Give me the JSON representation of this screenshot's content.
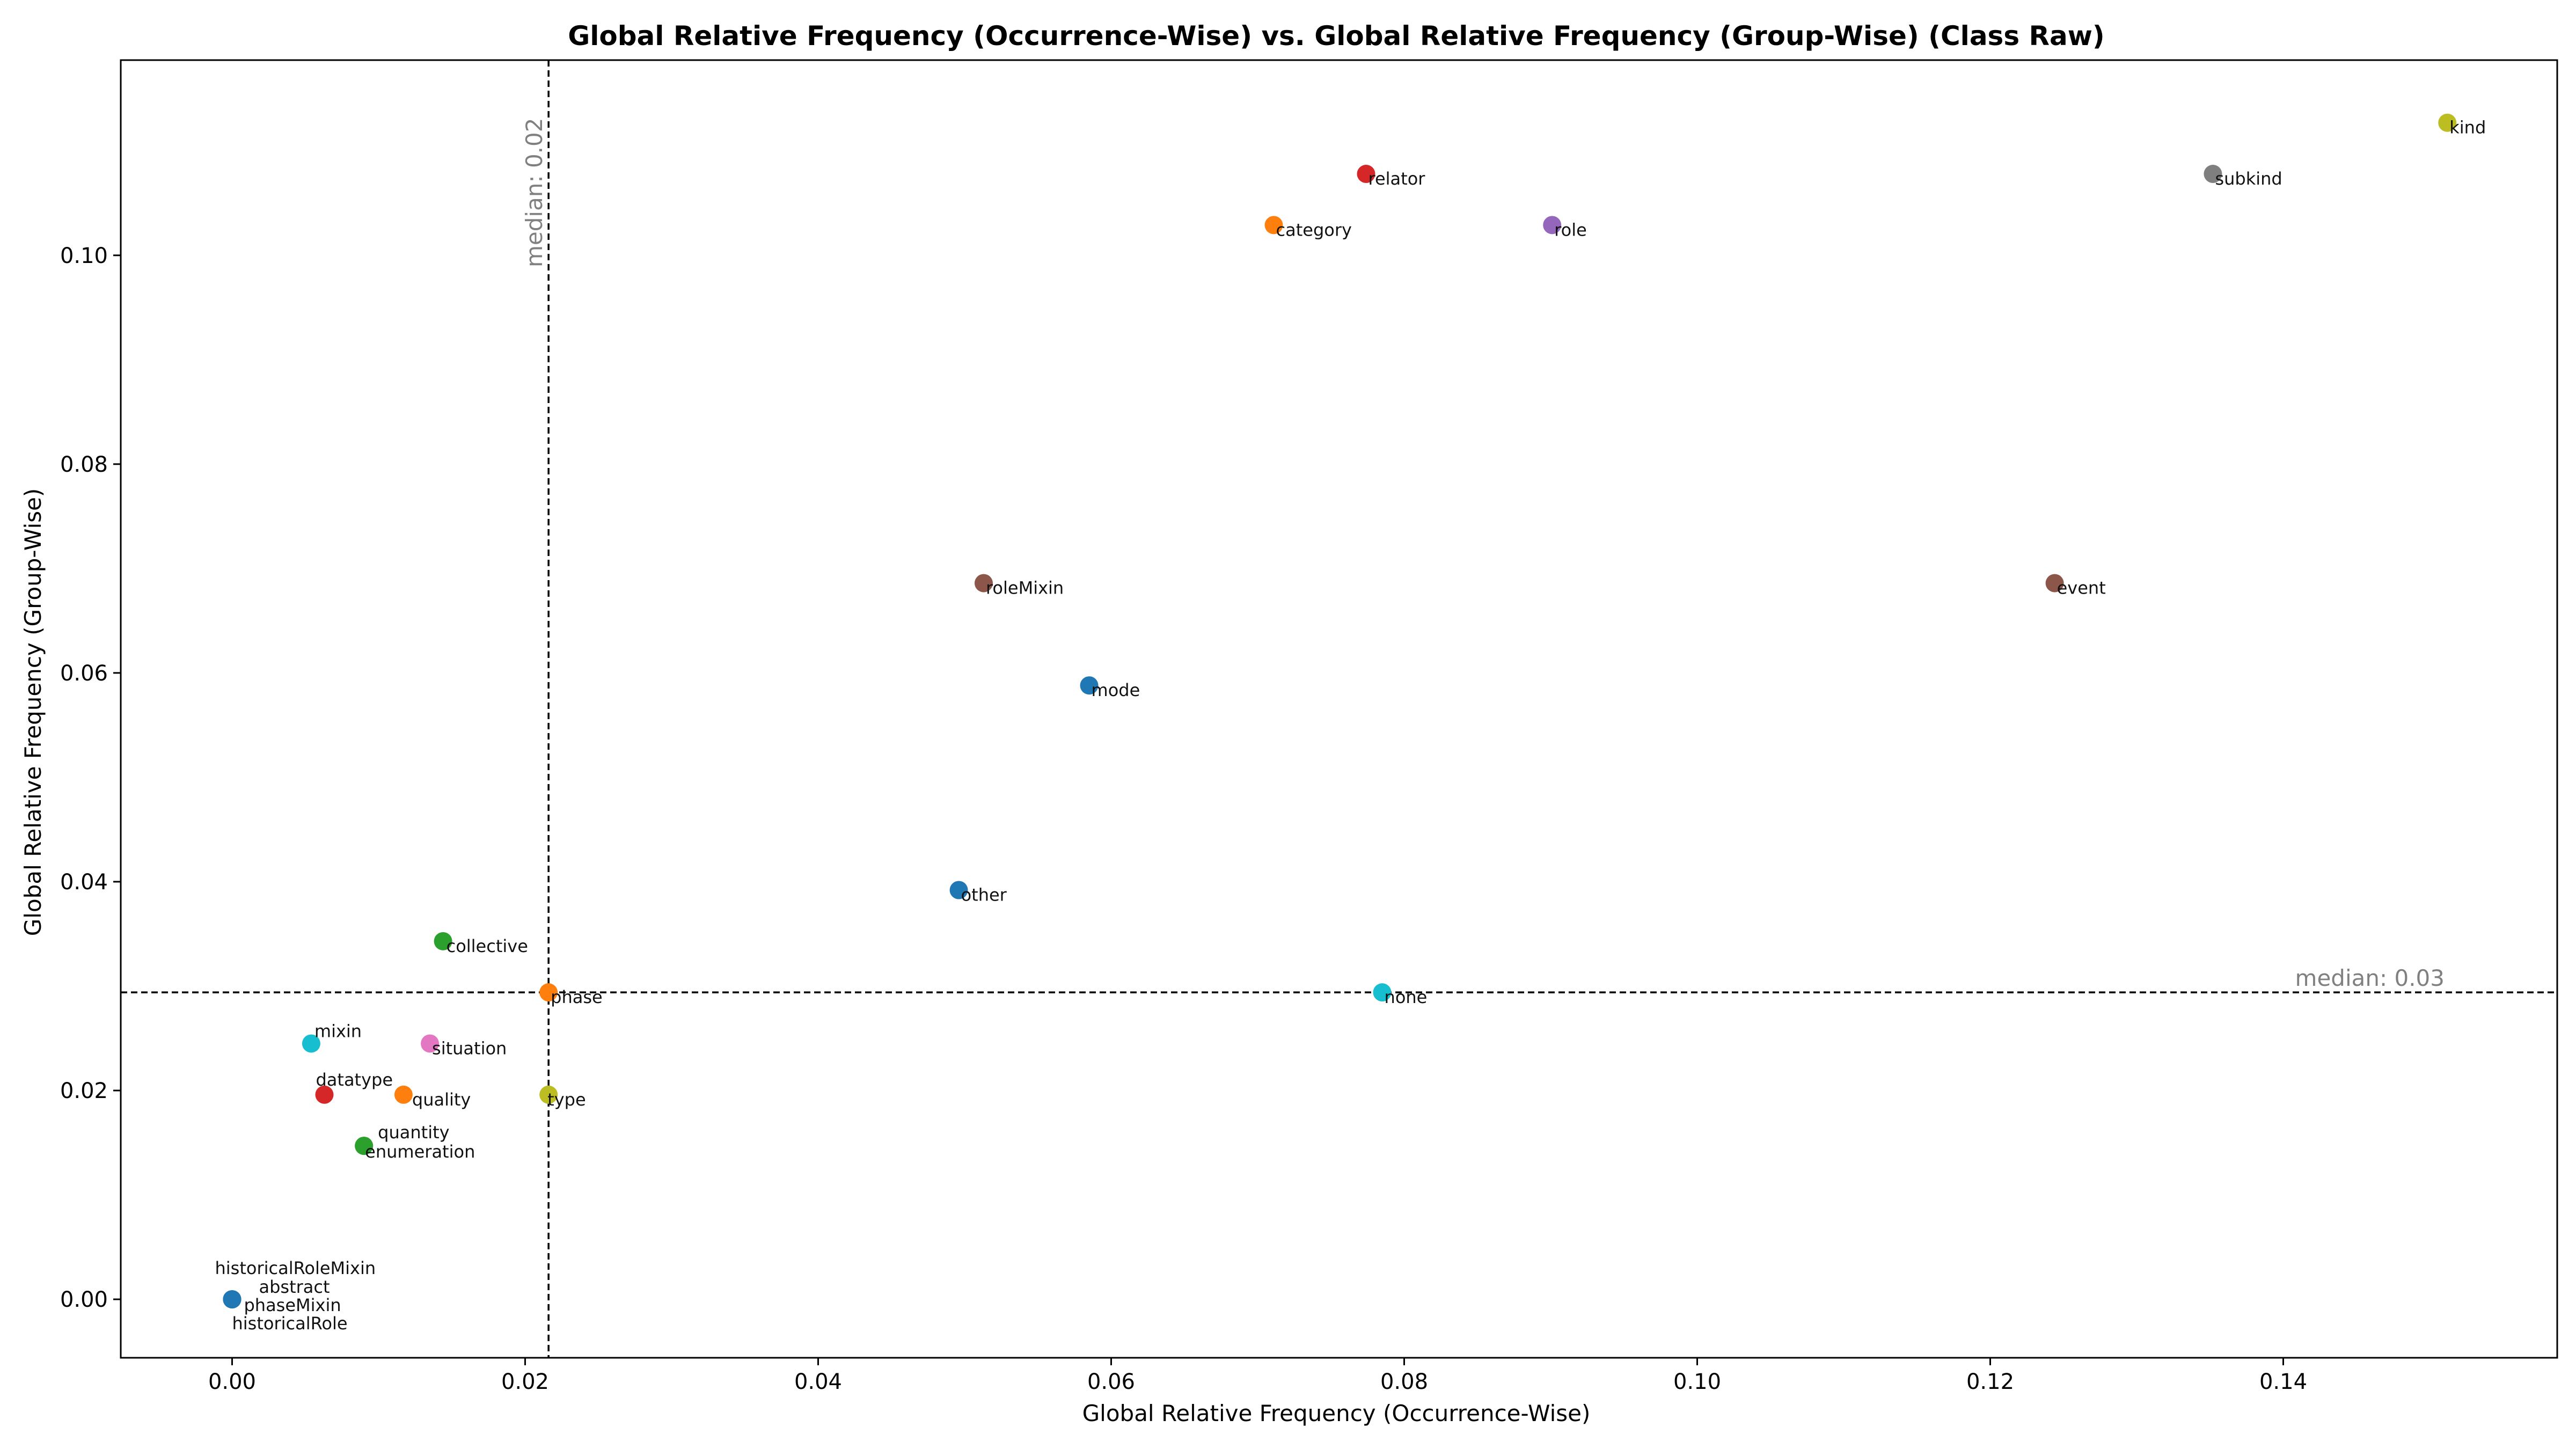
{
  "chart_data": {
    "type": "scatter",
    "title": "Global Relative Frequency (Occurrence-Wise) vs. Global Relative Frequency (Group-Wise) (Class Raw)",
    "xlabel": "Global Relative Frequency (Occurrence-Wise)",
    "ylabel": "Global Relative Frequency (Group-Wise)",
    "xlim": [
      -0.0076,
      0.1587
    ],
    "ylim": [
      -0.0056,
      0.1187
    ],
    "xticks": [
      0.0,
      0.02,
      0.04,
      0.06,
      0.08,
      0.1,
      0.12,
      0.14
    ],
    "xtick_labels": [
      "0.00",
      "0.02",
      "0.04",
      "0.06",
      "0.08",
      "0.10",
      "0.12",
      "0.14"
    ],
    "yticks": [
      0.0,
      0.02,
      0.04,
      0.06,
      0.08,
      0.1
    ],
    "ytick_labels": [
      "0.00",
      "0.02",
      "0.04",
      "0.06",
      "0.08",
      "0.10"
    ],
    "grid": false,
    "medians": {
      "x": {
        "value": 0.0216,
        "label": "median: 0.02"
      },
      "y": {
        "value": 0.0294,
        "label": "median: 0.03"
      }
    },
    "points": [
      {
        "label": "kind",
        "x": 0.1512,
        "y": 0.1127,
        "color": "#bcbd22"
      },
      {
        "label": "subkind",
        "x": 0.1352,
        "y": 0.1078,
        "color": "#7f7f7f"
      },
      {
        "label": "relator",
        "x": 0.0774,
        "y": 0.1078,
        "color": "#d62728"
      },
      {
        "label": "category",
        "x": 0.0711,
        "y": 0.1029,
        "color": "#ff7f0e"
      },
      {
        "label": "role",
        "x": 0.0901,
        "y": 0.1029,
        "color": "#9467bd"
      },
      {
        "label": "roleMixin",
        "x": 0.0513,
        "y": 0.0686,
        "color": "#8c564b"
      },
      {
        "label": "event",
        "x": 0.1244,
        "y": 0.0686,
        "color": "#8c564b"
      },
      {
        "label": "mode",
        "x": 0.0585,
        "y": 0.0588,
        "color": "#1f77b4"
      },
      {
        "label": "other",
        "x": 0.0496,
        "y": 0.0392,
        "color": "#1f77b4"
      },
      {
        "label": "collective",
        "x": 0.0144,
        "y": 0.0343,
        "color": "#2ca02c"
      },
      {
        "label": "phase",
        "x": 0.0216,
        "y": 0.0294,
        "color": "#ff7f0e"
      },
      {
        "label": "none",
        "x": 0.0785,
        "y": 0.0294,
        "color": "#17becf"
      },
      {
        "label": "mixin",
        "x": 0.0054,
        "y": 0.0245,
        "color": "#17becf"
      },
      {
        "label": "situation",
        "x": 0.0135,
        "y": 0.0245,
        "color": "#e377c2"
      },
      {
        "label": "datatype",
        "x": 0.0063,
        "y": 0.0196,
        "color": "#d62728"
      },
      {
        "label": "quality",
        "x": 0.0117,
        "y": 0.0196,
        "color": "#ff7f0e"
      },
      {
        "label": "type",
        "x": 0.0216,
        "y": 0.0196,
        "color": "#bcbd22"
      },
      {
        "label": "quantity",
        "x": 0.009,
        "y": 0.0147,
        "color": "#2ca02c"
      },
      {
        "label": "enumeration",
        "x": 0.009,
        "y": 0.0147,
        "color": "#2ca02c"
      },
      {
        "label": "historicalRoleMixin",
        "x": 0.0,
        "y": 0.0,
        "color": "#1f77b4"
      },
      {
        "label": "abstract",
        "x": 0.0,
        "y": 0.0,
        "color": "#1f77b4"
      },
      {
        "label": "phaseMixin",
        "x": 0.0,
        "y": 0.0,
        "color": "#1f77b4"
      },
      {
        "label": "historicalRole",
        "x": 0.0,
        "y": 0.0,
        "color": "#1f77b4"
      }
    ]
  }
}
